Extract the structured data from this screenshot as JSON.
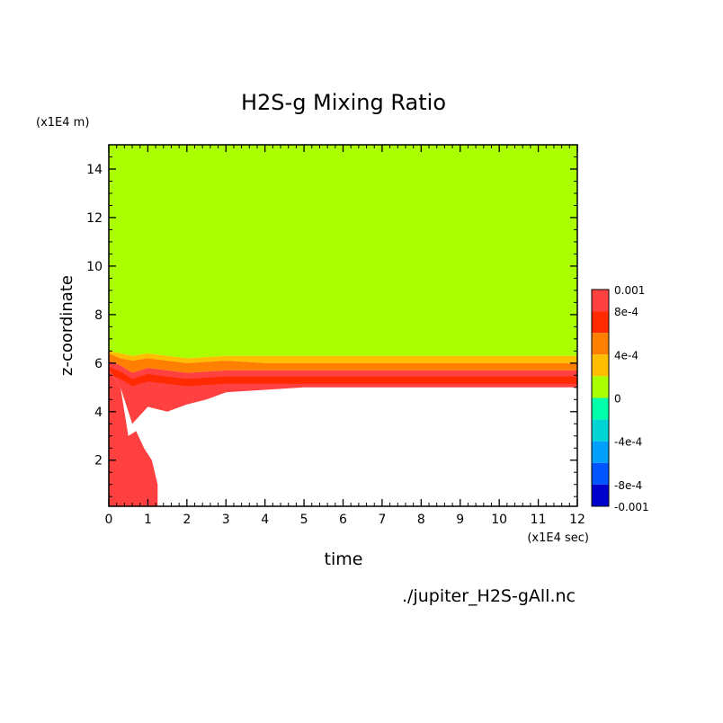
{
  "chart_data": {
    "type": "heatmap",
    "title": "H2S-g Mixing Ratio",
    "xlabel": "time",
    "ylabel": "z-coordinate",
    "x_unit": "(x1E4 sec)",
    "y_unit": "(x1E4 m)",
    "xlim": [
      0,
      12
    ],
    "ylim": [
      0.1,
      15
    ],
    "x_ticks": [
      "0",
      "1",
      "2",
      "3",
      "4",
      "5",
      "6",
      "7",
      "8",
      "9",
      "10",
      "11",
      "12"
    ],
    "y_ticks": [
      "2",
      "4",
      "6",
      "8",
      "10",
      "12",
      "14"
    ],
    "x_tick_values": [
      0,
      1,
      2,
      3,
      4,
      5,
      6,
      7,
      8,
      9,
      10,
      11,
      12
    ],
    "y_tick_values": [
      2,
      4,
      6,
      8,
      10,
      12,
      14
    ],
    "colorbar": {
      "range": [
        -0.001,
        0.001
      ],
      "labels": [
        "0.001",
        "8e-4",
        "4e-4",
        "0",
        "-4e-4",
        "-8e-4",
        "-0.001"
      ],
      "label_values": [
        0.001,
        0.0008,
        0.0004,
        0,
        -0.0004,
        -0.0008,
        -0.001
      ],
      "levels": [
        {
          "from": 0.0008,
          "to": 0.001,
          "color": "#ff4040"
        },
        {
          "from": 0.0006,
          "to": 0.0008,
          "color": "#ff2a00"
        },
        {
          "from": 0.0004,
          "to": 0.0006,
          "color": "#ff7f00"
        },
        {
          "from": 0.0002,
          "to": 0.0004,
          "color": "#ffbf00"
        },
        {
          "from": 0.0,
          "to": 0.0002,
          "color": "#aaff00"
        },
        {
          "from": -0.0002,
          "to": 0.0,
          "color": "#00ffaa"
        },
        {
          "from": -0.0004,
          "to": -0.0002,
          "color": "#00d4d4"
        },
        {
          "from": -0.0006,
          "to": -0.0004,
          "color": "#00a0ff"
        },
        {
          "from": -0.0008,
          "to": -0.0006,
          "color": "#0055ff"
        },
        {
          "from": -0.001,
          "to": -0.0008,
          "color": "#0000cc"
        }
      ]
    },
    "fields": {
      "background_color": "#aaff00",
      "empty_region_color": "#ffffff",
      "layer_top_yellow": [
        [
          0,
          6.5
        ],
        [
          0.3,
          6.4
        ],
        [
          0.6,
          6.3
        ],
        [
          1.0,
          6.4
        ],
        [
          1.5,
          6.3
        ],
        [
          2.0,
          6.2
        ],
        [
          3,
          6.3
        ],
        [
          4,
          6.3
        ],
        [
          6,
          6.3
        ],
        [
          8,
          6.3
        ],
        [
          10,
          6.3
        ],
        [
          12,
          6.3
        ]
      ],
      "layer_top_orange": [
        [
          0,
          6.4
        ],
        [
          0.3,
          6.2
        ],
        [
          0.6,
          6.1
        ],
        [
          1.0,
          6.2
        ],
        [
          1.5,
          6.1
        ],
        [
          2.0,
          6.0
        ],
        [
          3,
          6.1
        ],
        [
          4,
          6.0
        ],
        [
          6,
          6.0
        ],
        [
          8,
          6.0
        ],
        [
          10,
          6.0
        ],
        [
          12,
          6.0
        ]
      ],
      "layer_top_red": [
        [
          0,
          6.1
        ],
        [
          0.3,
          5.9
        ],
        [
          0.6,
          5.6
        ],
        [
          1.0,
          5.8
        ],
        [
          1.5,
          5.7
        ],
        [
          2.0,
          5.6
        ],
        [
          3,
          5.7
        ],
        [
          4,
          5.7
        ],
        [
          6,
          5.7
        ],
        [
          8,
          5.7
        ],
        [
          10,
          5.7
        ],
        [
          12,
          5.7
        ]
      ],
      "layer_bottom_red": [
        [
          0,
          5.8
        ],
        [
          0.3,
          5.0
        ],
        [
          0.6,
          3.5
        ],
        [
          1.0,
          4.2
        ],
        [
          1.5,
          4.0
        ],
        [
          2.0,
          4.3
        ],
        [
          2.5,
          4.5
        ],
        [
          3,
          4.8
        ],
        [
          4,
          4.9
        ],
        [
          5,
          5.0
        ],
        [
          6,
          5.0
        ],
        [
          8,
          5.0
        ],
        [
          10,
          5.0
        ],
        [
          12,
          5.0
        ]
      ],
      "lower_red_region": [
        [
          0,
          5.8
        ],
        [
          0.3,
          5.0
        ],
        [
          0.5,
          3.0
        ],
        [
          0.7,
          3.2
        ],
        [
          0.9,
          2.5
        ],
        [
          1.1,
          2.0
        ],
        [
          1.25,
          1.0
        ],
        [
          1.25,
          0.1
        ],
        [
          0,
          0.1
        ]
      ]
    },
    "annotation": "./jupiter_H2S-gAll.nc"
  }
}
